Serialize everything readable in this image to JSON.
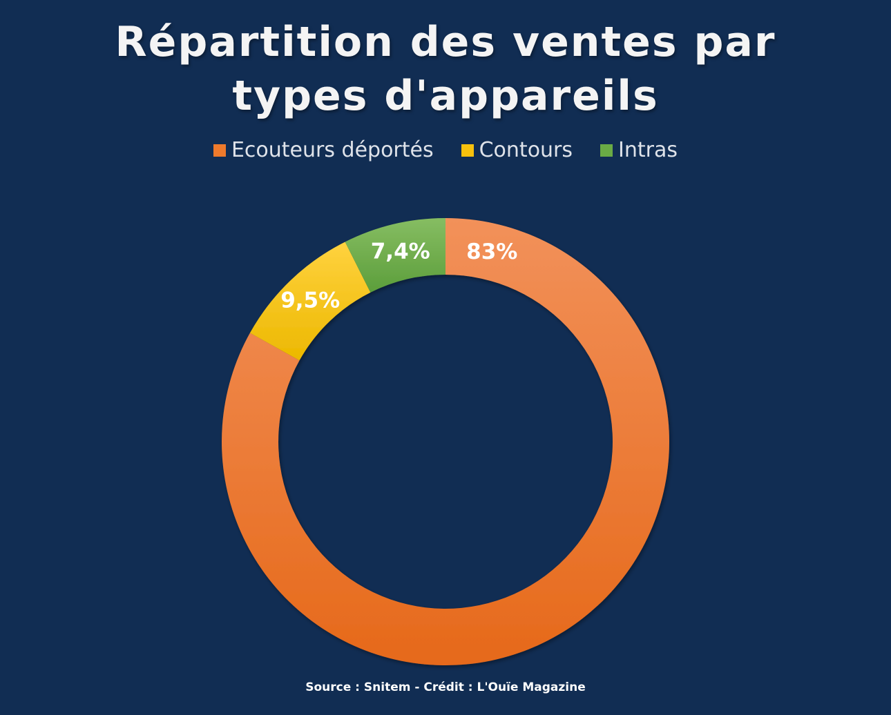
{
  "chart_data": {
    "type": "pie",
    "title": "Répartition des ventes par types d'appareils",
    "categories": [
      "Ecouteurs déportés",
      "Contours",
      "Intras"
    ],
    "values": [
      83,
      9.5,
      7.4
    ],
    "data_labels": [
      "83%",
      "9,5%",
      "7,4%"
    ],
    "colors": [
      "#ef7a2c",
      "#f7c10d",
      "#6aab45"
    ],
    "style": "donut",
    "legend": "top"
  },
  "footer": {
    "source": "Source : Snitem - Crédit : L'Ouïe Magazine"
  }
}
